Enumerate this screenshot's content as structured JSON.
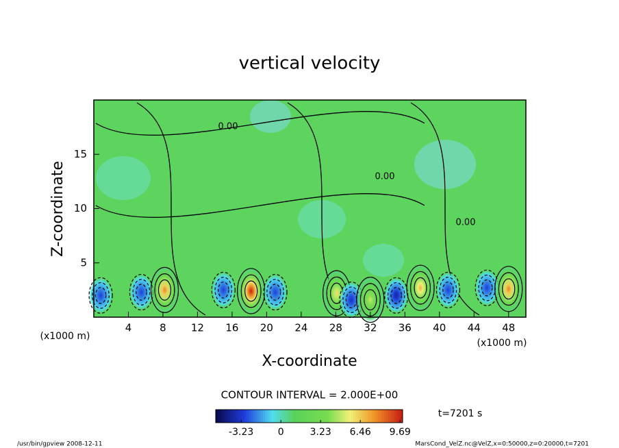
{
  "chart_data": {
    "type": "contour",
    "title": "vertical velocity",
    "x_label": "X-coordinate",
    "y_label": "Z-coordinate",
    "x_unit_left": "(x1000 m)",
    "x_unit_right": "(x1000 m)",
    "xlim": [
      0,
      50
    ],
    "xticks": [
      4,
      8,
      12,
      16,
      20,
      24,
      28,
      32,
      36,
      40,
      44,
      48
    ],
    "ylim": [
      0,
      20
    ],
    "yticks": [
      5,
      10,
      15
    ],
    "contour_interval": "CONTOUR INTERVAL = 2.000E+00",
    "contour_labels": [
      "0.00",
      "0.00",
      "0.00"
    ],
    "clim": [
      -5.3,
      9.9
    ],
    "cticks": [
      -3.23,
      0,
      3.23,
      6.46,
      9.69
    ],
    "time_label": "t=7201 s",
    "footer_left": "/usr/bin/gpview   2008-12-11",
    "footer_right": "MarsCond_VelZ.nc@VelZ,x=0:50000,z=0:20000,t=7201",
    "extrema": {
      "x": [
        0.8,
        5.5,
        8.2,
        15,
        18.2,
        21,
        28.1,
        29.8,
        32,
        35,
        37.8,
        41,
        45.5,
        48
      ],
      "z": [
        2.0,
        2.3,
        2.5,
        2.5,
        2.4,
        2.3,
        2.2,
        1.6,
        1.6,
        2.0,
        2.7,
        2.5,
        2.7,
        2.6
      ],
      "values": [
        -3,
        -3,
        8,
        -3,
        10,
        -3,
        6,
        -3.5,
        5,
        -4,
        7,
        -3,
        -3,
        8
      ]
    }
  }
}
